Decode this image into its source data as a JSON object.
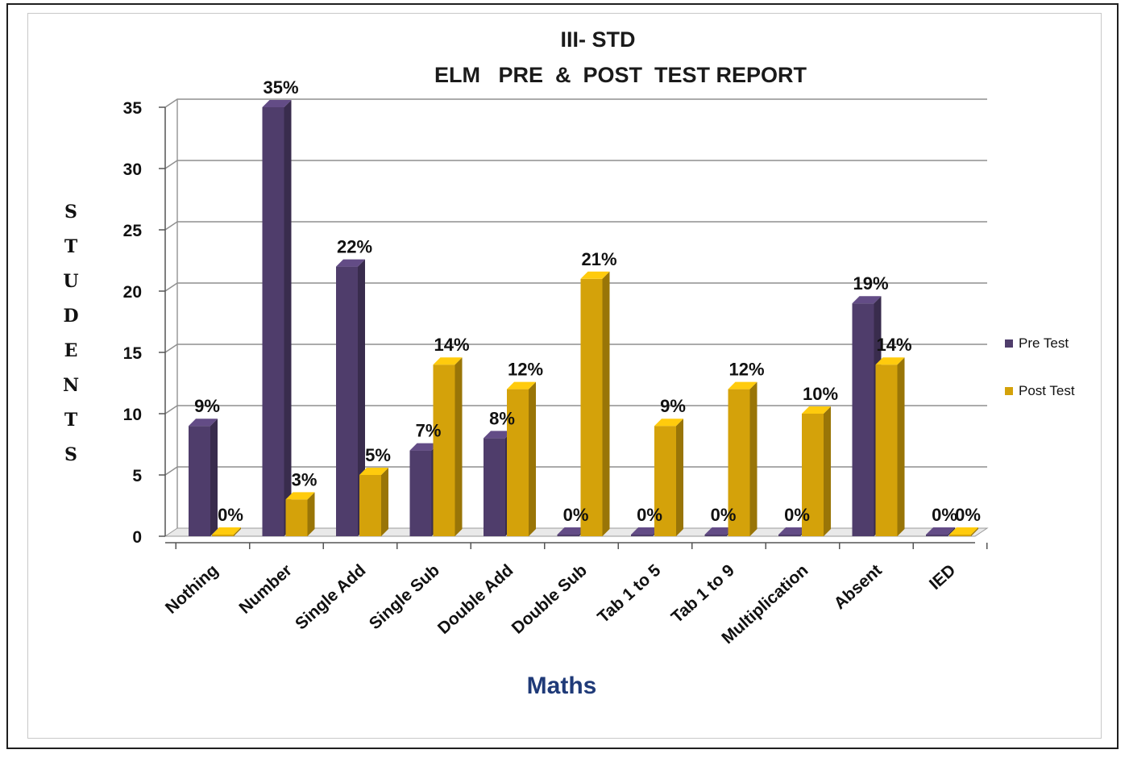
{
  "chart_data": {
    "type": "bar",
    "title_line1": "III- STD",
    "title_line2": "ELM   PRE  &  POST  TEST REPORT",
    "xlabel": "Maths",
    "ylabel_letters": [
      "S",
      "T",
      "U",
      "D",
      "E",
      "N",
      "T",
      "S"
    ],
    "ylim": [
      0,
      35
    ],
    "yticks": [
      "0",
      "5",
      "10",
      "15",
      "20",
      "25",
      "30",
      "35"
    ],
    "grid": true,
    "legend_position": "right",
    "categories": [
      "Nothing",
      "Number",
      "Single Add",
      "Single Sub",
      "Double Add",
      "Double Sub",
      "Tab 1 to 5",
      "Tab 1 to 9",
      "Multiplication",
      "Absent",
      "IED"
    ],
    "series": [
      {
        "name": "Pre Test",
        "color": "#4f3d6b",
        "values": [
          9,
          35,
          22,
          7,
          8,
          0,
          0,
          0,
          0,
          19,
          0
        ],
        "labels": [
          "9%",
          "35%",
          "22%",
          "7%",
          "8%",
          "0%",
          "0%",
          "0%",
          "0%",
          "19%",
          "0%"
        ]
      },
      {
        "name": "Post Test",
        "color": "#d4a20a",
        "values": [
          0,
          3,
          5,
          14,
          12,
          21,
          9,
          12,
          10,
          14,
          0
        ],
        "labels": [
          "0%",
          "3%",
          "5%",
          "14%",
          "12%",
          "21%",
          "9%",
          "12%",
          "10%",
          "14%",
          "0%"
        ]
      }
    ]
  }
}
